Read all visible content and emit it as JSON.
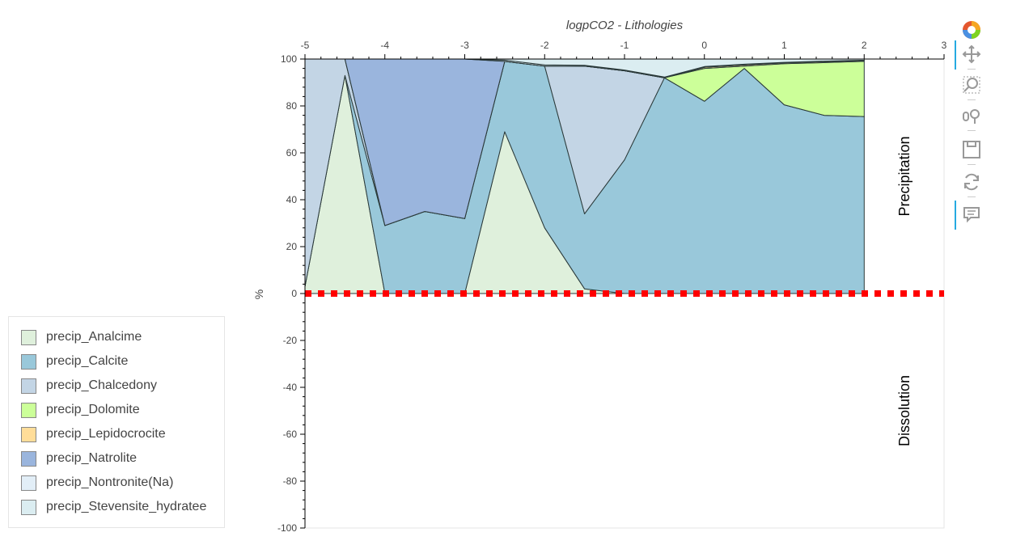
{
  "chart_data": {
    "type": "area",
    "title": "logpCO2 - Lithologies",
    "xlabel": "",
    "ylabel": "%",
    "xlim": [
      -5,
      3
    ],
    "ylim": [
      -100,
      100
    ],
    "x_ticks": [
      -5,
      -4,
      -3,
      -2,
      -1,
      0,
      1,
      2,
      3
    ],
    "y_ticks": [
      100,
      80,
      60,
      40,
      20,
      0,
      -20,
      -40,
      -60,
      -80,
      -100
    ],
    "annotations": [
      "Precipitation",
      "Dissolution"
    ],
    "reference_line": {
      "y": 0,
      "color": "#ff0000",
      "style": "dotted"
    },
    "legend_position": "left",
    "x": [
      -5,
      -4.5,
      -4,
      -3.5,
      -3,
      -2.5,
      -2,
      -1.5,
      -1,
      -0.5,
      0,
      0.5,
      1,
      1.5,
      2
    ],
    "series": [
      {
        "name": "precip_Analcime",
        "color": "#dff0dc",
        "values": [
          3,
          93,
          0,
          0,
          0,
          69,
          28,
          2,
          0,
          0,
          0,
          0,
          0,
          0,
          0
        ]
      },
      {
        "name": "precip_Calcite",
        "color": "#99c8da",
        "values": [
          0,
          0,
          29,
          35,
          32,
          30,
          69,
          32,
          57,
          92,
          82,
          96,
          80.5,
          76,
          75.5
        ]
      },
      {
        "name": "precip_Chalcedony",
        "color": "#c3d5e5",
        "values": [
          97,
          7,
          0,
          0,
          0,
          0,
          0,
          63,
          38,
          0,
          0,
          0,
          0,
          0,
          0
        ]
      },
      {
        "name": "precip_Dolomite",
        "color": "#ccff99",
        "values": [
          0,
          0,
          0,
          0,
          0,
          0,
          0,
          0,
          0,
          0,
          14,
          1,
          17.5,
          22.5,
          23.5
        ]
      },
      {
        "name": "precip_Lepidocrocite",
        "color": "#ffdd99",
        "values": [
          0,
          0,
          0,
          0,
          0,
          0,
          0,
          0,
          0,
          0,
          0.5,
          0.5,
          0.4,
          0.4,
          0.4
        ]
      },
      {
        "name": "precip_Natrolite",
        "color": "#9ab5dd",
        "values": [
          0,
          0,
          71,
          65,
          68,
          0,
          0,
          0,
          0,
          0,
          0,
          0,
          0,
          0,
          0
        ]
      },
      {
        "name": "precip_Nontronite(Na)",
        "color": "#e2eef7",
        "values": [
          0,
          0,
          0,
          0,
          0,
          0.5,
          0.5,
          0.3,
          0.3,
          0.3,
          0.3,
          0.3,
          0.2,
          0.2,
          0.1
        ]
      },
      {
        "name": "precip_Stevensite_hydratee",
        "color": "#dbedf1",
        "values": [
          0,
          0,
          0,
          0,
          0,
          0.5,
          2.5,
          2.7,
          4.7,
          7.7,
          3.2,
          2.2,
          1.4,
          0.9,
          0.5
        ]
      }
    ]
  },
  "toolbar": {
    "tools": [
      "pan-icon",
      "box-zoom-icon",
      "wheel-zoom-icon",
      "save-icon",
      "reset-icon",
      "hover-icon"
    ]
  }
}
